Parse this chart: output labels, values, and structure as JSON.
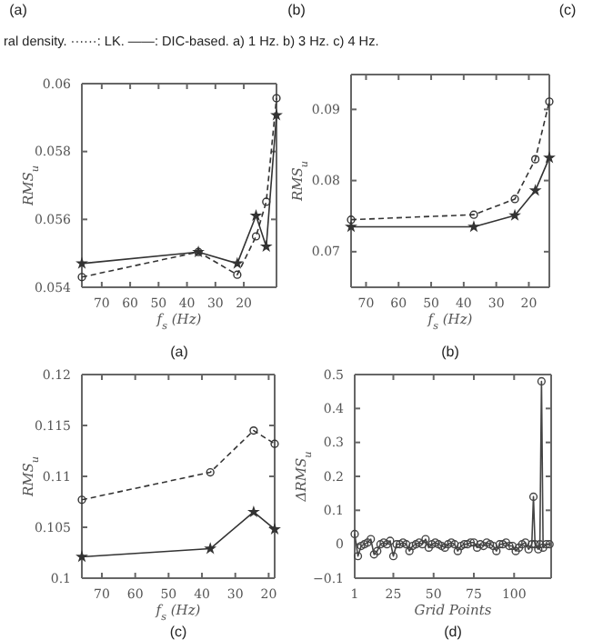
{
  "chart_data": [
    {
      "type": "other",
      "annotations": [
        "(a)",
        "(b)",
        "(c)",
        "ral density. ······: LK. ——: DIC-based. a) 1 Hz. b) 3 Hz. c) 4 Hz."
      ]
    },
    {
      "type": "line",
      "xlabel": "f$_{s}$ (Hz)",
      "ylabel": "RMS$_{u}$",
      "annotations": [
        "(a)"
      ],
      "xlim": [
        77,
        8.5
      ],
      "xticks": [
        70,
        60,
        50,
        40,
        30,
        20
      ],
      "ylim": [
        0.054,
        0.06
      ],
      "yticks": [
        0.054,
        0.056,
        0.058,
        0.06
      ],
      "grid": false,
      "series": [
        {
          "color": "#333333",
          "line_style": "solid",
          "marker": "star",
          "x": [
            77,
            36,
            22.3,
            15.7,
            12.1,
            8.5
          ],
          "values": [
            0.0547,
            0.05504,
            0.0547,
            0.05611,
            0.0552,
            0.05907
          ]
        },
        {
          "color": "#333333",
          "line_style": "dashed",
          "marker": "circle",
          "x": [
            77,
            36,
            22.3,
            15.7,
            12.1,
            8.5
          ],
          "values": [
            0.0543,
            0.05504,
            0.05437,
            0.0555,
            0.05652,
            0.05957
          ]
        }
      ]
    },
    {
      "type": "line",
      "xlabel": "f$_{s}$ (Hz)",
      "ylabel": "RMS$_{u}$",
      "annotations": [
        "(b)"
      ],
      "xlim": [
        74.6,
        13.7
      ],
      "xticks": [
        70,
        60,
        50,
        40,
        30,
        20
      ],
      "ylim": [
        0.065,
        0.0949
      ],
      "yticks": [
        0.07,
        0.08,
        0.09
      ],
      "grid": false,
      "series": [
        {
          "color": "#333333",
          "line_style": "solid",
          "marker": "star",
          "x": [
            74.6,
            36.9,
            24.3,
            18,
            13.7
          ],
          "values": [
            0.0735,
            0.0735,
            0.0751,
            0.0786,
            0.0832
          ]
        },
        {
          "color": "#333333",
          "line_style": "dashed",
          "marker": "circle",
          "x": [
            74.6,
            36.9,
            24.3,
            18,
            13.7
          ],
          "values": [
            0.0745,
            0.0752,
            0.0774,
            0.083,
            0.0911
          ]
        }
      ]
    },
    {
      "type": "line",
      "xlabel": "f$_{s}$ (Hz)",
      "ylabel": "RMS$_{u}$",
      "annotations": [
        "(c)"
      ],
      "xlim": [
        76,
        18.2
      ],
      "xticks": [
        70,
        60,
        50,
        40,
        30,
        20
      ],
      "ylim": [
        0.1,
        0.12
      ],
      "yticks": [
        0.1,
        0.105,
        0.11,
        0.115,
        0.12
      ],
      "grid": false,
      "series": [
        {
          "color": "#333333",
          "line_style": "solid",
          "marker": "star",
          "x": [
            76,
            37.5,
            24.5,
            18.2
          ],
          "values": [
            0.1021,
            0.1029,
            0.1065,
            0.1048
          ]
        },
        {
          "color": "#333333",
          "line_style": "dashed",
          "marker": "circle",
          "x": [
            76,
            37.5,
            24.5,
            18.2
          ],
          "values": [
            0.1077,
            0.1104,
            0.1145,
            0.1132
          ]
        }
      ]
    },
    {
      "type": "line",
      "xlabel": "Grid Points",
      "ylabel": "ΔRMS$_{u}$",
      "annotations": [
        "(d)"
      ],
      "xlim": [
        1,
        123
      ],
      "xticks": [
        1,
        25,
        50,
        75,
        100
      ],
      "ylim": [
        -0.1,
        0.5
      ],
      "yticks": [
        {
          "value": -0.1,
          "label": "−0.1"
        },
        0,
        0.1,
        0.2,
        0.3,
        0.4,
        0.5
      ],
      "grid": false,
      "series": [
        {
          "color": "#444444",
          "line_style": "solid",
          "marker": "circle",
          "x": [
            1,
            3,
            5,
            7,
            9,
            11,
            13,
            15,
            17,
            19,
            21,
            23,
            25,
            27,
            29,
            31,
            33,
            35,
            37,
            39,
            41,
            43,
            45,
            47,
            49,
            51,
            53,
            55,
            57,
            59,
            61,
            63,
            65,
            67,
            69,
            71,
            73,
            75,
            77,
            79,
            81,
            83,
            85,
            87,
            89,
            91,
            93,
            95,
            97,
            99,
            101,
            103,
            105,
            107,
            109,
            111,
            112,
            113,
            115,
            116,
            117,
            118,
            120,
            122
          ],
          "values": [
            0.03,
            -0.035,
            -0.005,
            0,
            0.005,
            0.015,
            -0.03,
            -0.02,
            0,
            0.005,
            0,
            0.01,
            -0.035,
            0,
            0,
            0.005,
            0,
            -0.02,
            -0.005,
            0,
            0.005,
            0,
            0.015,
            -0.01,
            0,
            0.005,
            0,
            -0.005,
            -0.01,
            0,
            0.005,
            0,
            -0.02,
            -0.005,
            0,
            0,
            0.005,
            0.005,
            -0.01,
            0,
            -0.005,
            0.005,
            0,
            -0.005,
            -0.02,
            0,
            0,
            0.005,
            -0.005,
            -0.005,
            -0.02,
            -0.01,
            0,
            0.005,
            -0.015,
            0,
            0.14,
            0,
            -0.015,
            0,
            0.48,
            -0.01,
            0,
            0
          ]
        }
      ]
    }
  ]
}
